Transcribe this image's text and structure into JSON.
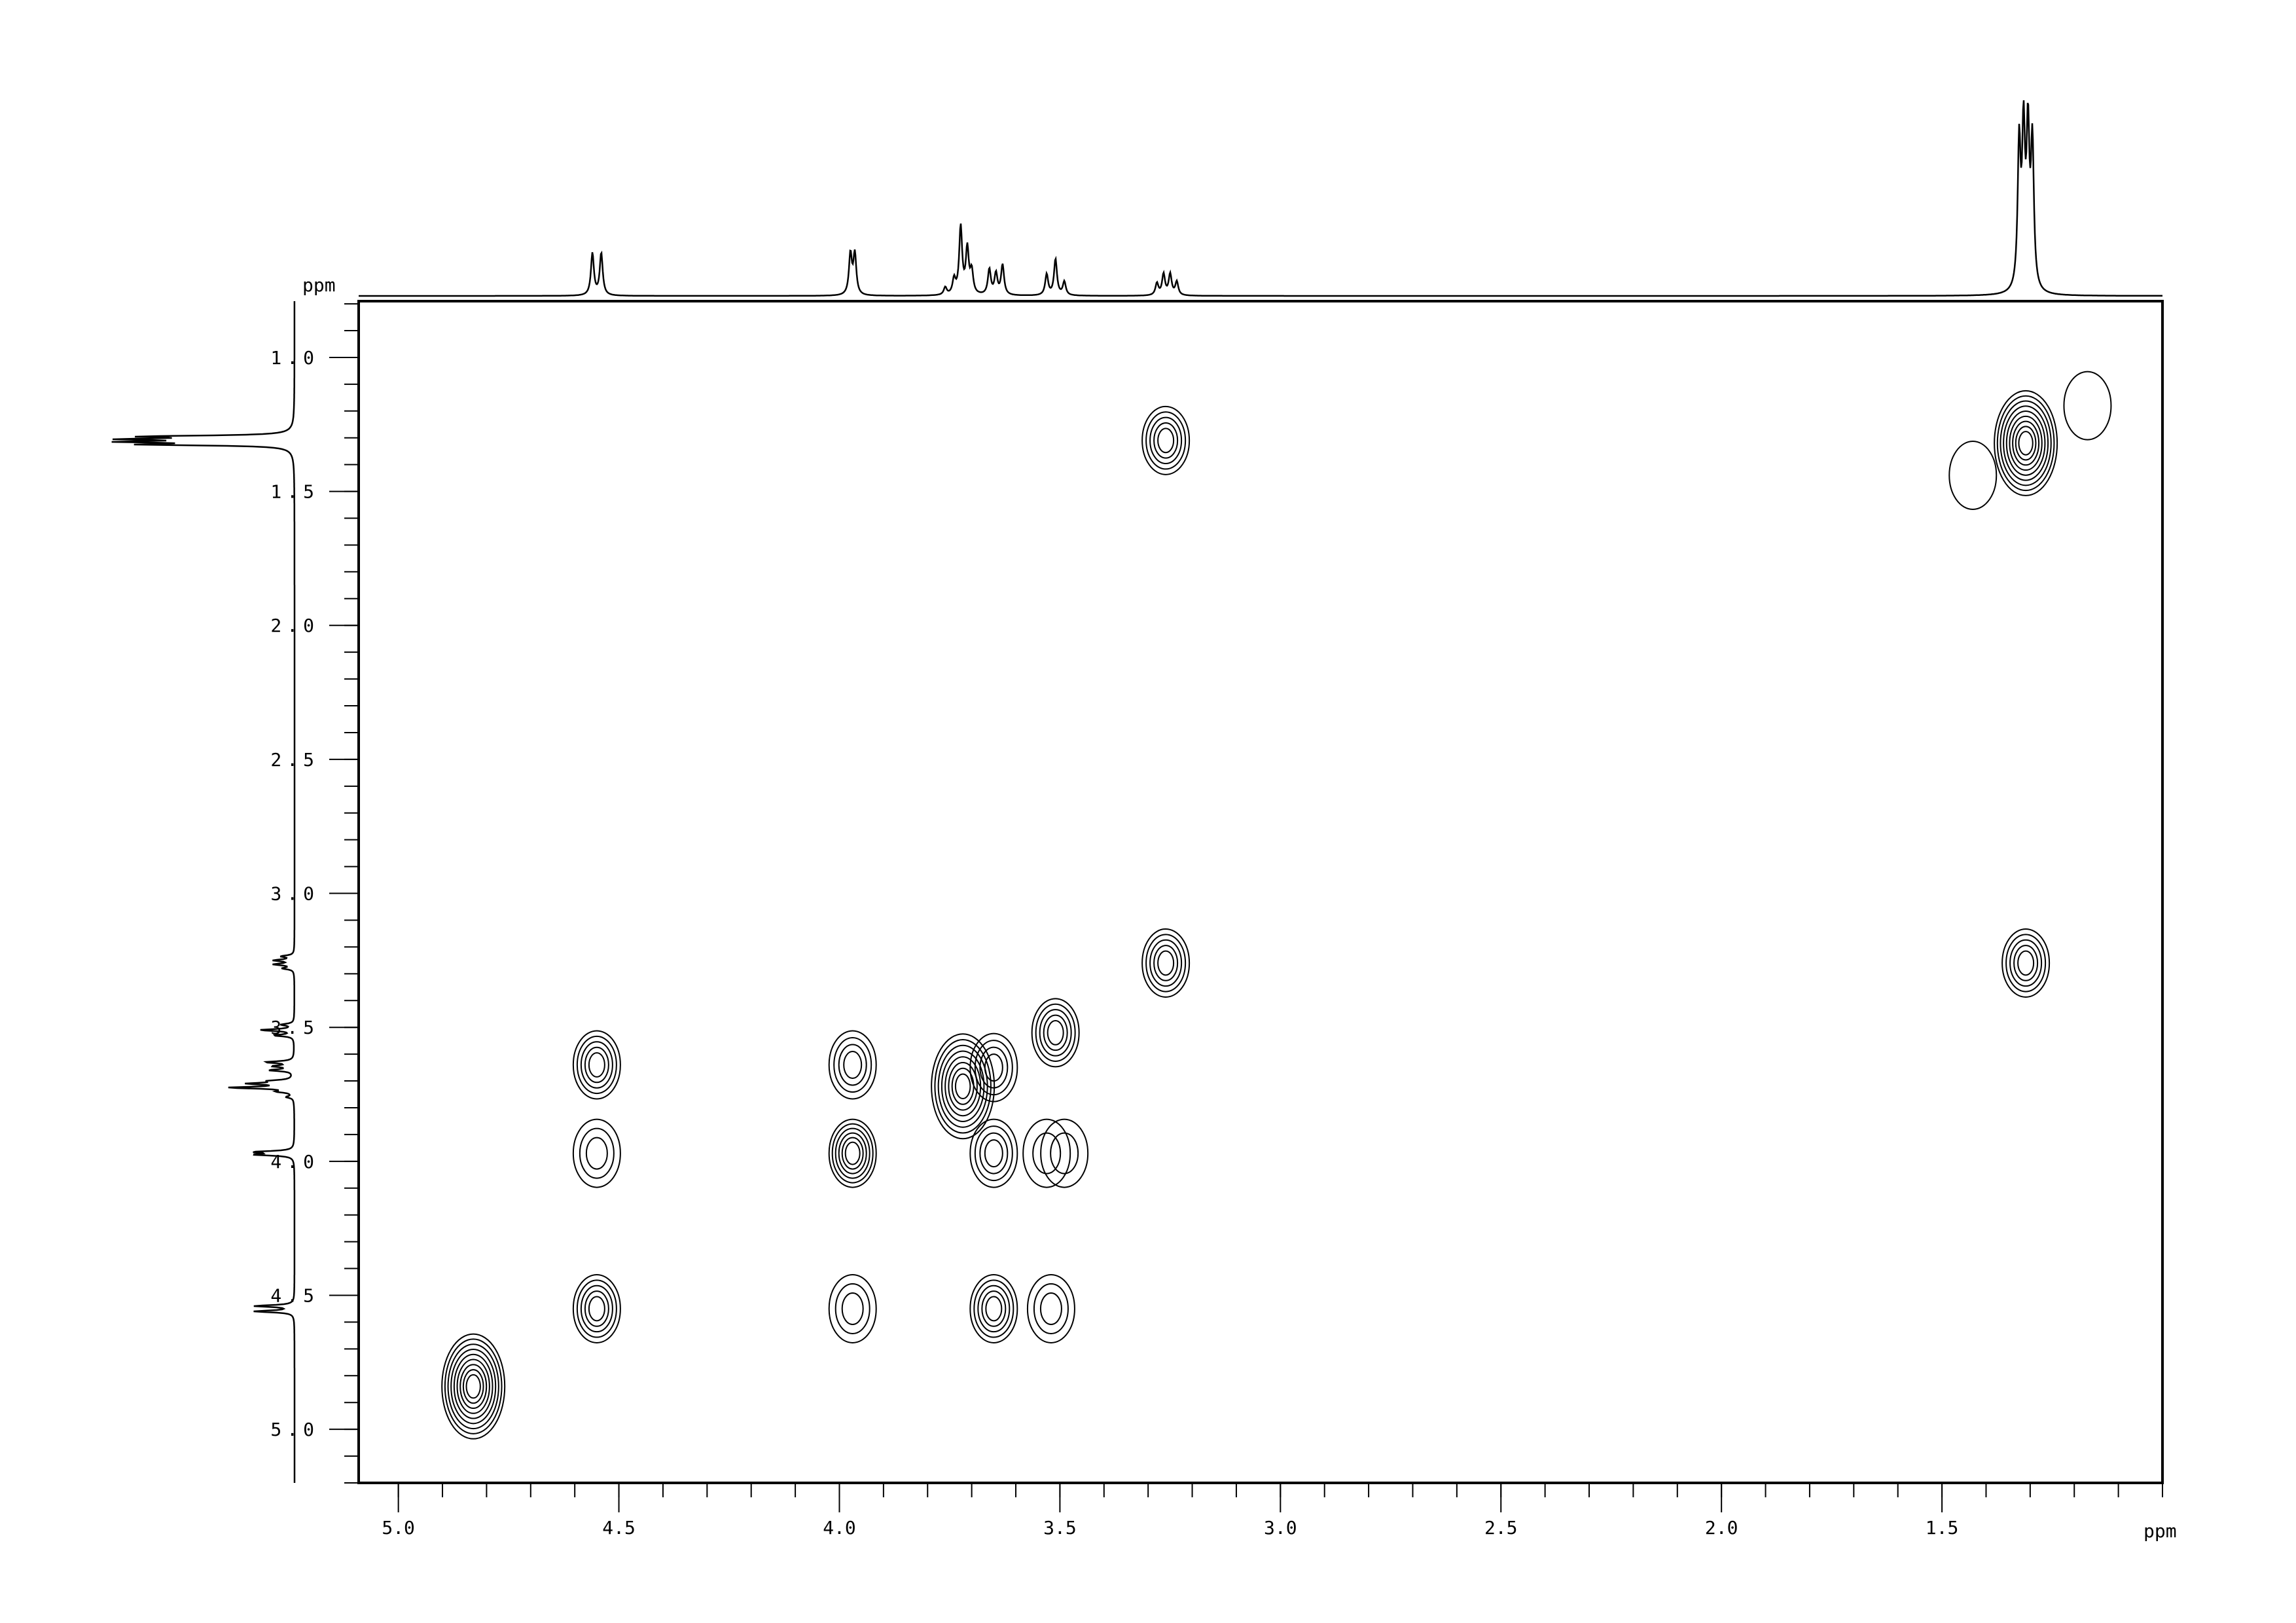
{
  "chart_data": {
    "type": "2d-nmr-contour",
    "x_axis": {
      "label": "ppm",
      "range": [
        5.09,
        1.0
      ],
      "reversed": true,
      "ticks": [
        "5.0",
        "4.5",
        "4.0",
        "3.5",
        "3.0",
        "2.5",
        "2.0",
        "1.5"
      ],
      "tick_values": [
        5.0,
        4.5,
        4.0,
        3.5,
        3.0,
        2.5,
        2.0,
        1.5
      ],
      "minor_step": 0.1
    },
    "y_axis": {
      "label": "ppm",
      "range": [
        0.79,
        5.2
      ],
      "reversed": true,
      "ticks": [
        "1.0",
        "1.5",
        "2.0",
        "2.5",
        "3.0",
        "3.5",
        "4.0",
        "4.5",
        "5.0"
      ],
      "tick_values": [
        1.0,
        1.5,
        2.0,
        2.5,
        3.0,
        3.5,
        4.0,
        4.5,
        5.0
      ],
      "minor_step": 0.1
    },
    "cross_peaks": [
      {
        "f2": 4.83,
        "f1": 4.84,
        "levels": 9
      },
      {
        "f2": 4.55,
        "f1": 4.55,
        "levels": 5
      },
      {
        "f2": 3.97,
        "f1": 3.97,
        "levels": 6
      },
      {
        "f2": 3.72,
        "f1": 3.72,
        "levels": 8
      },
      {
        "f2": 3.65,
        "f1": 3.65,
        "levels": 4
      },
      {
        "f2": 3.51,
        "f1": 3.52,
        "levels": 5
      },
      {
        "f2": 3.26,
        "f1": 3.26,
        "levels": 5
      },
      {
        "f2": 1.31,
        "f1": 1.32,
        "levels": 9
      },
      {
        "f2": 3.26,
        "f1": 1.31,
        "levels": 5
      },
      {
        "f2": 1.31,
        "f1": 3.26,
        "levels": 5
      },
      {
        "f2": 4.55,
        "f1": 3.64,
        "levels": 5
      },
      {
        "f2": 3.97,
        "f1": 3.64,
        "levels": 4
      },
      {
        "f2": 4.55,
        "f1": 3.97,
        "levels": 3
      },
      {
        "f2": 3.97,
        "f1": 4.55,
        "levels": 3
      },
      {
        "f2": 3.65,
        "f1": 4.55,
        "levels": 5
      },
      {
        "f2": 3.65,
        "f1": 3.97,
        "levels": 4
      },
      {
        "f2": 3.53,
        "f1": 3.97,
        "levels": 2
      },
      {
        "f2": 3.49,
        "f1": 3.97,
        "levels": 2
      },
      {
        "f2": 3.52,
        "f1": 4.55,
        "levels": 3
      },
      {
        "f2": 1.43,
        "f1": 1.44,
        "levels": 1
      },
      {
        "f2": 1.17,
        "f1": 1.18,
        "levels": 1
      }
    ],
    "projection_1d": [
      {
        "ppm": 4.56,
        "height": 0.28
      },
      {
        "ppm": 4.54,
        "height": 0.28
      },
      {
        "ppm": 3.975,
        "height": 0.27
      },
      {
        "ppm": 3.965,
        "height": 0.27
      },
      {
        "ppm": 3.76,
        "height": 0.05
      },
      {
        "ppm": 3.74,
        "height": 0.1
      },
      {
        "ppm": 3.725,
        "height": 0.45
      },
      {
        "ppm": 3.71,
        "height": 0.3
      },
      {
        "ppm": 3.7,
        "height": 0.15
      },
      {
        "ppm": 3.66,
        "height": 0.17
      },
      {
        "ppm": 3.645,
        "height": 0.14
      },
      {
        "ppm": 3.63,
        "height": 0.2
      },
      {
        "ppm": 3.53,
        "height": 0.14
      },
      {
        "ppm": 3.51,
        "height": 0.24
      },
      {
        "ppm": 3.49,
        "height": 0.09
      },
      {
        "ppm": 3.28,
        "height": 0.08
      },
      {
        "ppm": 3.265,
        "height": 0.14
      },
      {
        "ppm": 3.25,
        "height": 0.14
      },
      {
        "ppm": 3.235,
        "height": 0.09
      },
      {
        "ppm": 1.325,
        "height": 0.95
      },
      {
        "ppm": 1.315,
        "height": 1.0
      },
      {
        "ppm": 1.305,
        "height": 1.0
      },
      {
        "ppm": 1.295,
        "height": 0.95
      }
    ]
  }
}
